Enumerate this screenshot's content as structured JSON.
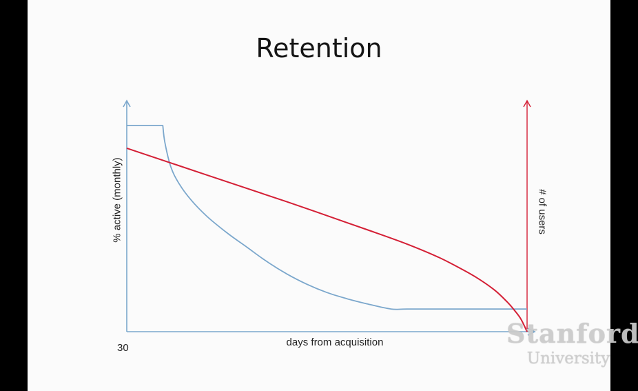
{
  "slide": {
    "title": "Retention"
  },
  "chart_data": {
    "type": "line",
    "title": "Retention",
    "xlabel": "days from acquisition",
    "ylabel": "% active (monthly)",
    "y2label": "# of users",
    "x_tick_labels": [
      "30"
    ],
    "grid": false,
    "legend": "none",
    "series": [
      {
        "axis": "left",
        "color": "#7ba7cc",
        "x": [
          0,
          9,
          9.5,
          11,
          13,
          16,
          20,
          25,
          30,
          35,
          40,
          45,
          50,
          55,
          60,
          66,
          70,
          80,
          90,
          100
        ],
        "y": [
          100,
          100,
          92,
          80,
          72,
          64,
          56,
          48,
          41,
          34,
          28,
          23,
          19,
          16,
          13.5,
          11,
          11,
          11,
          11,
          11
        ]
      },
      {
        "axis": "right",
        "color": "#d41f35",
        "x": [
          0,
          20,
          40,
          60,
          70,
          78,
          84,
          88,
          92,
          95,
          97,
          98.5,
          100
        ],
        "y": [
          89,
          76,
          63,
          49.5,
          42.5,
          36,
          30,
          25.5,
          20,
          14.5,
          10,
          6,
          0
        ]
      }
    ]
  },
  "watermark": {
    "line1": "Stanford",
    "line2": "University"
  }
}
